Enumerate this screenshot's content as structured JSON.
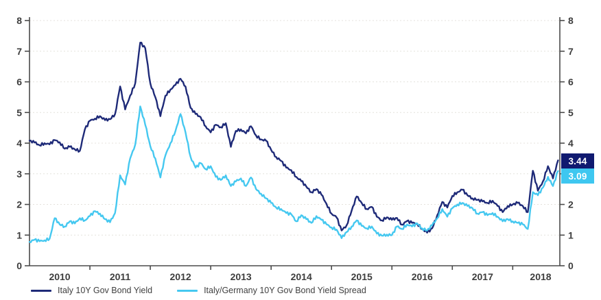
{
  "colors": {
    "yield_line": "#1e2a78",
    "spread_line": "#45c8f0",
    "yield_label_bg": "#101a70",
    "spread_label_bg": "#3ec7f0",
    "axis": "#4a4a4a",
    "tick_text": "#3d3d3d",
    "grid": "#e4e2dc"
  },
  "legend": {
    "items": [
      {
        "label": "Italy 10Y Gov Bond Yield",
        "color": "#1e2a78"
      },
      {
        "label": "Italy/Germany 10Y Gov Bond Yield Spread",
        "color": "#45c8f0"
      }
    ]
  },
  "end_labels": {
    "yield": {
      "text": "3.44",
      "bg": "#101a70"
    },
    "spread": {
      "text": "3.09",
      "bg": "#3ec7f0"
    }
  },
  "chart_data": {
    "type": "line",
    "title": "",
    "xlabel": "",
    "ylabel": "",
    "x_start": 2010.0,
    "points_per_year": 12,
    "xlim": [
      2010.0,
      2018.78
    ],
    "ylim": [
      0,
      8
    ],
    "yticks": [
      0,
      1,
      2,
      3,
      4,
      5,
      6,
      7,
      8
    ],
    "dual_y_axis": true,
    "year_boundary_ticks": [
      2011,
      2012,
      2013,
      2014,
      2015,
      2016,
      2017,
      2018
    ],
    "year_labels": [
      "2010",
      "2011",
      "2012",
      "2013",
      "2014",
      "2015",
      "2016",
      "2017",
      "2018"
    ],
    "grid": "horizontal-dotted",
    "legend_position": "bottom-left",
    "series": [
      {
        "name": "Italy 10Y Gov Bond Yield",
        "color": "#1e2a78",
        "end_value_label": "3.44",
        "values": [
          4.08,
          4.02,
          3.93,
          4.0,
          3.96,
          4.1,
          4.03,
          3.82,
          3.88,
          3.8,
          3.75,
          4.45,
          4.73,
          4.8,
          4.88,
          4.75,
          4.78,
          4.95,
          5.85,
          5.1,
          5.55,
          5.95,
          7.28,
          7.1,
          5.95,
          5.5,
          4.88,
          5.55,
          5.75,
          5.9,
          6.1,
          5.85,
          5.15,
          4.95,
          4.85,
          4.55,
          4.35,
          4.6,
          4.52,
          4.65,
          3.88,
          4.4,
          4.45,
          4.32,
          4.55,
          4.25,
          4.12,
          4.08,
          3.78,
          3.55,
          3.42,
          3.2,
          3.12,
          2.9,
          2.76,
          2.58,
          2.4,
          2.5,
          2.32,
          2.02,
          1.7,
          1.58,
          1.15,
          1.32,
          1.8,
          2.26,
          2.05,
          1.85,
          1.92,
          1.6,
          1.48,
          1.58,
          1.5,
          1.56,
          1.34,
          1.46,
          1.4,
          1.38,
          1.2,
          1.08,
          1.22,
          1.65,
          2.08,
          1.9,
          2.28,
          2.4,
          2.48,
          2.3,
          2.2,
          2.15,
          2.1,
          2.05,
          2.12,
          1.95,
          1.75,
          1.95,
          2.0,
          2.05,
          1.95,
          1.75,
          3.1,
          2.45,
          2.75,
          3.25,
          2.85,
          3.44
        ]
      },
      {
        "name": "Italy/Germany 10Y Gov Bond Yield Spread",
        "color": "#45c8f0",
        "end_value_label": "3.09",
        "values": [
          0.78,
          0.85,
          0.8,
          0.83,
          0.88,
          1.55,
          1.35,
          1.28,
          1.45,
          1.38,
          1.55,
          1.48,
          1.62,
          1.78,
          1.7,
          1.52,
          1.42,
          1.72,
          2.95,
          2.65,
          3.5,
          3.95,
          5.2,
          4.6,
          3.9,
          3.5,
          2.88,
          3.6,
          4.0,
          4.4,
          4.95,
          4.35,
          3.55,
          3.2,
          3.35,
          3.15,
          3.25,
          2.9,
          2.8,
          2.95,
          2.6,
          2.75,
          2.85,
          2.6,
          2.88,
          2.5,
          2.35,
          2.2,
          2.05,
          1.9,
          1.85,
          1.72,
          1.68,
          1.45,
          1.65,
          1.52,
          1.4,
          1.62,
          1.5,
          1.35,
          1.25,
          1.18,
          0.9,
          1.1,
          1.28,
          1.48,
          1.3,
          1.22,
          1.28,
          1.05,
          0.98,
          1.02,
          1.0,
          1.28,
          1.2,
          1.35,
          1.28,
          1.38,
          1.22,
          1.15,
          1.32,
          1.55,
          1.85,
          1.6,
          1.88,
          2.0,
          2.05,
          1.95,
          1.88,
          1.7,
          1.75,
          1.65,
          1.72,
          1.6,
          1.45,
          1.52,
          1.45,
          1.4,
          1.35,
          1.2,
          2.4,
          2.3,
          2.55,
          2.9,
          2.6,
          3.09
        ]
      }
    ]
  }
}
